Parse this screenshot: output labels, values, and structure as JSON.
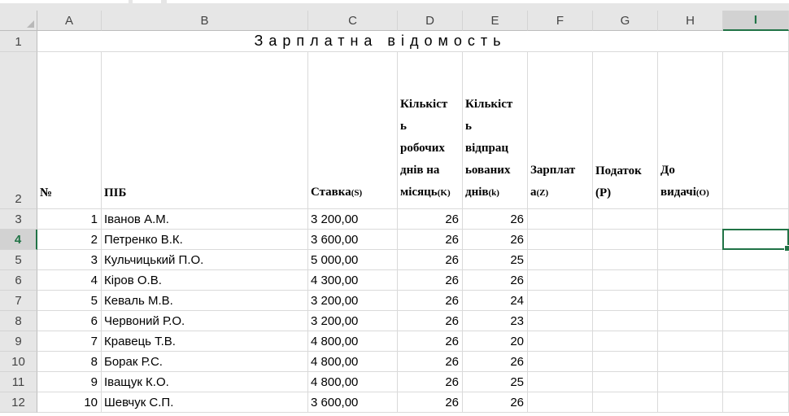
{
  "sheet": {
    "columns": [
      "A",
      "B",
      "C",
      "D",
      "E",
      "F",
      "G",
      "H",
      "I"
    ],
    "selected_column": "I",
    "selected_row": "4",
    "title": "Зарплатна відомость",
    "header_row_number": "2",
    "title_row_number": "1",
    "headers": {
      "A": {
        "lines": [
          "№"
        ],
        "sub": ""
      },
      "B": {
        "lines": [
          "ПІБ"
        ],
        "sub": ""
      },
      "C": {
        "lines": [
          "Ставка"
        ],
        "sub": "(S)"
      },
      "D": {
        "lines": [
          "Кількіст",
          "ь",
          "робочих",
          "днів на",
          "місяць"
        ],
        "sub": "(K)"
      },
      "E": {
        "lines": [
          "Кількіст",
          "ь",
          "відпрац",
          "ьованих",
          "днів"
        ],
        "sub": "(k)"
      },
      "F": {
        "lines": [
          "Зарплат",
          "а"
        ],
        "sub": "(Z)"
      },
      "G": {
        "lines": [
          "Податок",
          "(P)"
        ],
        "sub": ""
      },
      "H": {
        "lines": [
          "До",
          "видачі"
        ],
        "sub": "(O)"
      }
    },
    "rows": [
      {
        "row": "3",
        "num": "1",
        "name": "Іванов А.М.",
        "rate": "3 200,00",
        "work_days": "26",
        "worked_days": "26"
      },
      {
        "row": "4",
        "num": "2",
        "name": "Петренко В.К.",
        "rate": "3 600,00",
        "work_days": "26",
        "worked_days": "26"
      },
      {
        "row": "5",
        "num": "3",
        "name": "Кульчицький П.О.",
        "rate": "5 000,00",
        "work_days": "26",
        "worked_days": "25"
      },
      {
        "row": "6",
        "num": "4",
        "name": "Кіров О.В.",
        "rate": "4 300,00",
        "work_days": "26",
        "worked_days": "26"
      },
      {
        "row": "7",
        "num": "5",
        "name": "Кеваль М.В.",
        "rate": "3 200,00",
        "work_days": "26",
        "worked_days": "24"
      },
      {
        "row": "8",
        "num": "6",
        "name": "Червоний Р.О.",
        "rate": "3 200,00",
        "work_days": "26",
        "worked_days": "23"
      },
      {
        "row": "9",
        "num": "7",
        "name": "Кравець Т.В.",
        "rate": "4 800,00",
        "work_days": "26",
        "worked_days": "20"
      },
      {
        "row": "10",
        "num": "8",
        "name": "Борак Р.С.",
        "rate": "4 800,00",
        "work_days": "26",
        "worked_days": "26"
      },
      {
        "row": "11",
        "num": "9",
        "name": "Іващук К.О.",
        "rate": "4 800,00",
        "work_days": "26",
        "worked_days": "25"
      },
      {
        "row": "12",
        "num": "10",
        "name": "Шевчук С.П.",
        "rate": "3 600,00",
        "work_days": "26",
        "worked_days": "26"
      }
    ]
  },
  "colors": {
    "accent": "#217346",
    "header_bg": "#e6e6e6",
    "selected_header_bg": "#d2d2d2",
    "gridline": "#dadada"
  }
}
